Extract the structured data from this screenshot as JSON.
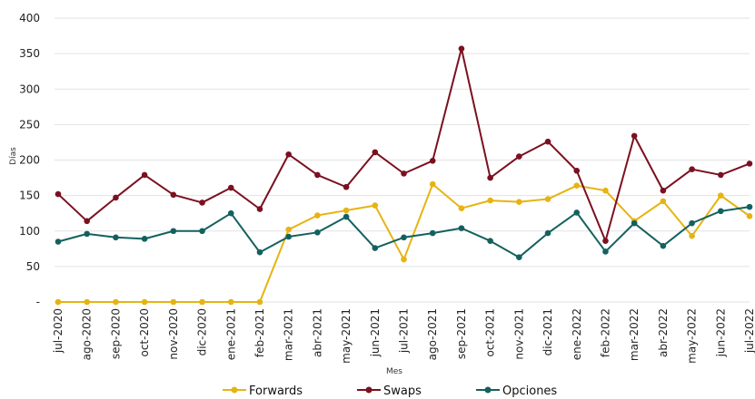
{
  "chart_data": {
    "type": "line",
    "xlabel": "Mes",
    "ylabel": "Días",
    "ylim": [
      0,
      400
    ],
    "y_ticks": [
      0,
      50,
      100,
      150,
      200,
      250,
      300,
      350,
      400
    ],
    "y_tick_labels": [
      "-",
      "50",
      "100",
      "150",
      "200",
      "250",
      "300",
      "350",
      "400"
    ],
    "grid": "horizontal",
    "legend_position": "bottom",
    "categories": [
      "jul-2020",
      "ago-2020",
      "sep-2020",
      "oct-2020",
      "nov-2020",
      "dic-2020",
      "ene-2021",
      "feb-2021",
      "mar-2021",
      "abr-2021",
      "may-2021",
      "jun-2021",
      "jul-2021",
      "ago-2021",
      "sep-2021",
      "oct-2021",
      "nov-2021",
      "dic-2021",
      "ene-2022",
      "feb-2022",
      "mar-2022",
      "abr-2022",
      "may-2022",
      "jun-2022",
      "jul-2022"
    ],
    "series": [
      {
        "name": "Forwards",
        "color": "#E6B412",
        "values": [
          0,
          0,
          0,
          0,
          0,
          0,
          0,
          0,
          102,
          122,
          129,
          136,
          60,
          166,
          132,
          143,
          141,
          145,
          164,
          157,
          114,
          142,
          93,
          150,
          121
        ]
      },
      {
        "name": "Swaps",
        "color": "#7B1020",
        "values": [
          152,
          114,
          147,
          179,
          151,
          140,
          161,
          131,
          208,
          179,
          162,
          211,
          181,
          199,
          357,
          175,
          205,
          226,
          185,
          86,
          234,
          157,
          187,
          179,
          195
        ]
      },
      {
        "name": "Opciones",
        "color": "#13615F",
        "values": [
          85,
          96,
          91,
          89,
          100,
          100,
          125,
          70,
          92,
          98,
          120,
          76,
          91,
          97,
          104,
          86,
          63,
          97,
          126,
          71,
          111,
          79,
          111,
          128,
          134
        ]
      }
    ]
  }
}
